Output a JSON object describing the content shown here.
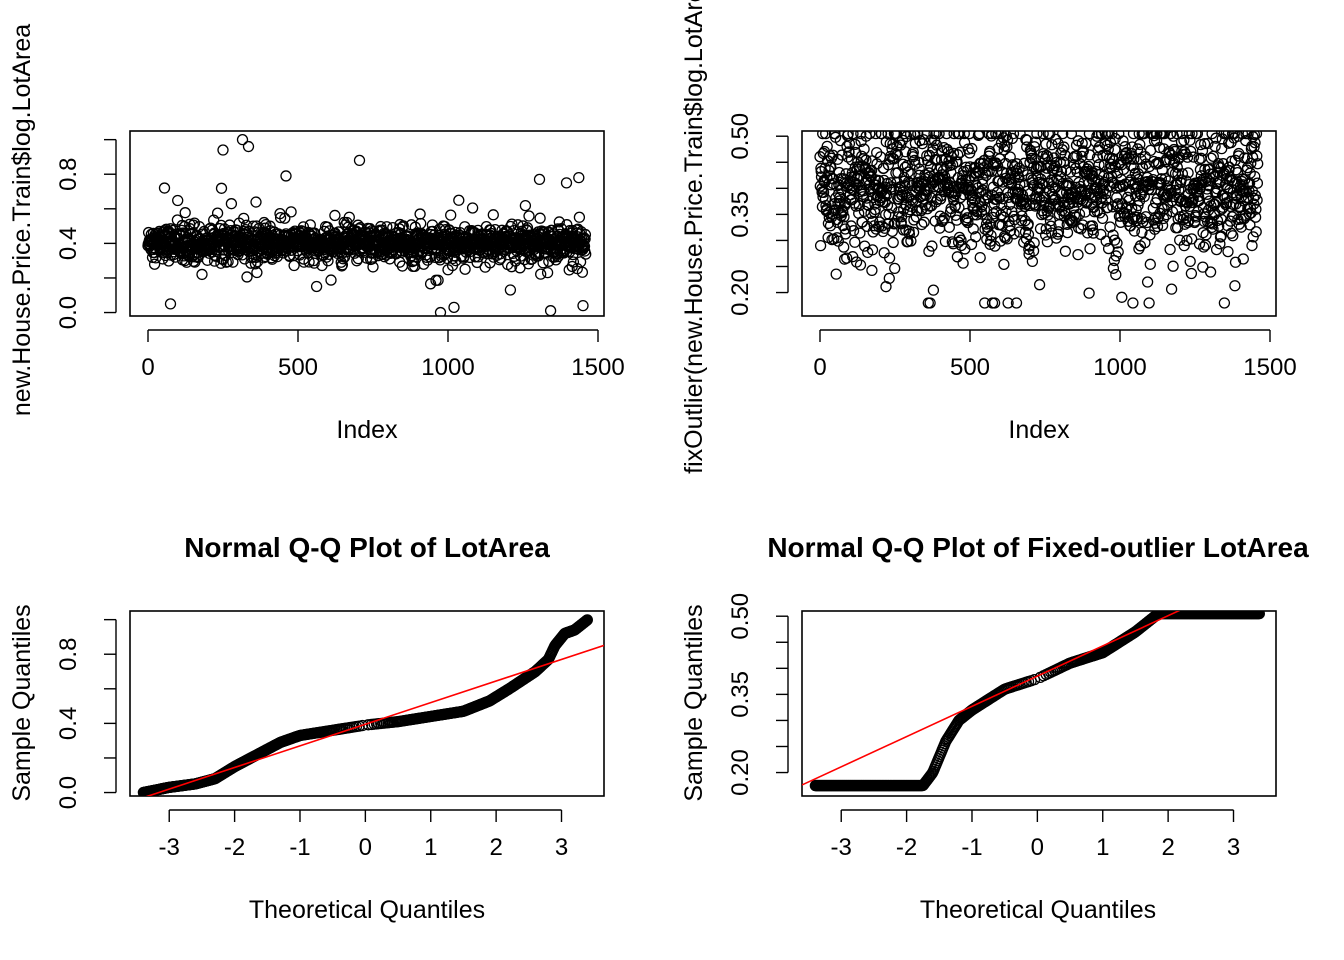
{
  "chart_data": [
    {
      "type": "scatter",
      "title": "",
      "xlabel": "Index",
      "ylabel": "new.House.Price.Train$log.LotArea",
      "xlim": [
        -60,
        1520
      ],
      "ylim": [
        -0.02,
        1.05
      ],
      "xticks": [
        0,
        500,
        1000,
        1500
      ],
      "xtick_labels": [
        "0",
        "500",
        "1000",
        "1500"
      ],
      "yticks": [
        0.0,
        0.2,
        0.4,
        0.6,
        0.8,
        1.0
      ],
      "ytick_labels": [
        "0.0",
        "0.4",
        "0.8"
      ],
      "n_points": 1460,
      "point_center": 0.4,
      "point_spread": 0.045,
      "outliers": [
        {
          "x": 250,
          "y": 0.94
        },
        {
          "x": 315,
          "y": 1.0
        },
        {
          "x": 335,
          "y": 0.96
        },
        {
          "x": 705,
          "y": 0.88
        },
        {
          "x": 55,
          "y": 0.72
        },
        {
          "x": 460,
          "y": 0.79
        },
        {
          "x": 1305,
          "y": 0.77
        },
        {
          "x": 1395,
          "y": 0.75
        },
        {
          "x": 975,
          "y": 0.0
        },
        {
          "x": 1450,
          "y": 0.04
        },
        {
          "x": 75,
          "y": 0.05
        },
        {
          "x": 1020,
          "y": 0.03
        }
      ],
      "grid": false,
      "legend": "none"
    },
    {
      "type": "scatter",
      "title": "",
      "xlabel": "Index",
      "ylabel": "fixOutlier(new.House.Price.Train$log.LotArea)",
      "xlim": [
        -60,
        1520
      ],
      "ylim": [
        0.155,
        0.51
      ],
      "xticks": [
        0,
        500,
        1000,
        1500
      ],
      "xtick_labels": [
        "0",
        "500",
        "1000",
        "1500"
      ],
      "yticks": [
        0.2,
        0.25,
        0.3,
        0.35,
        0.4,
        0.45,
        0.5
      ],
      "ytick_labels": [
        "0.20",
        "0.35",
        "0.50"
      ],
      "n_points": 1460,
      "point_center": 0.4,
      "point_spread": 0.055,
      "clip_low": 0.18,
      "clip_high": 0.505,
      "grid": false,
      "legend": "none"
    },
    {
      "type": "scatter",
      "title": "Normal Q-Q Plot of LotArea",
      "xlabel": "Theoretical Quantiles",
      "ylabel": "Sample Quantiles",
      "xlim": [
        -3.6,
        3.65
      ],
      "ylim": [
        -0.02,
        1.05
      ],
      "xticks": [
        -3,
        -2,
        -1,
        0,
        1,
        2,
        3
      ],
      "xtick_labels": [
        "-3",
        "-2",
        "-1",
        "0",
        "1",
        "2",
        "3"
      ],
      "yticks": [
        0.0,
        0.2,
        0.4,
        0.6,
        0.8,
        1.0
      ],
      "ytick_labels": [
        "0.0",
        "0.4",
        "0.8"
      ],
      "qq_curve": [
        [
          -3.4,
          0.0
        ],
        [
          -3.0,
          0.03
        ],
        [
          -2.6,
          0.05
        ],
        [
          -2.3,
          0.08
        ],
        [
          -2.0,
          0.15
        ],
        [
          -1.6,
          0.23
        ],
        [
          -1.3,
          0.29
        ],
        [
          -1.0,
          0.33
        ],
        [
          -0.5,
          0.36
        ],
        [
          0.0,
          0.39
        ],
        [
          0.5,
          0.41
        ],
        [
          1.0,
          0.44
        ],
        [
          1.5,
          0.47
        ],
        [
          1.9,
          0.53
        ],
        [
          2.2,
          0.6
        ],
        [
          2.6,
          0.7
        ],
        [
          2.8,
          0.77
        ],
        [
          2.9,
          0.85
        ],
        [
          3.05,
          0.92
        ],
        [
          3.2,
          0.94
        ],
        [
          3.4,
          1.0
        ]
      ],
      "ref_line": {
        "intercept": 0.395,
        "slope": 0.125
      },
      "ref_line_color": "#ff0000",
      "grid": false,
      "legend": "none"
    },
    {
      "type": "scatter",
      "title": "Normal Q-Q Plot of Fixed-outlier LotArea",
      "xlabel": "Theoretical Quantiles",
      "ylabel": "Sample Quantiles",
      "xlim": [
        -3.6,
        3.65
      ],
      "ylim": [
        0.155,
        0.51
      ],
      "xticks": [
        -3,
        -2,
        -1,
        0,
        1,
        2,
        3
      ],
      "xtick_labels": [
        "-3",
        "-2",
        "-1",
        "0",
        "1",
        "2",
        "3"
      ],
      "yticks": [
        0.2,
        0.25,
        0.3,
        0.35,
        0.4,
        0.45,
        0.5
      ],
      "ytick_labels": [
        "0.20",
        "0.35",
        "0.50"
      ],
      "qq_curve": [
        [
          -3.4,
          0.175
        ],
        [
          -1.75,
          0.175
        ],
        [
          -1.6,
          0.2
        ],
        [
          -1.4,
          0.26
        ],
        [
          -1.2,
          0.3
        ],
        [
          -1.0,
          0.32
        ],
        [
          -0.5,
          0.36
        ],
        [
          0.0,
          0.38
        ],
        [
          0.5,
          0.41
        ],
        [
          1.0,
          0.43
        ],
        [
          1.5,
          0.47
        ],
        [
          1.85,
          0.505
        ],
        [
          3.4,
          0.505
        ]
      ],
      "ref_line": {
        "intercept": 0.385,
        "slope": 0.058
      },
      "ref_line_color": "#ff0000",
      "grid": false,
      "legend": "none"
    }
  ]
}
